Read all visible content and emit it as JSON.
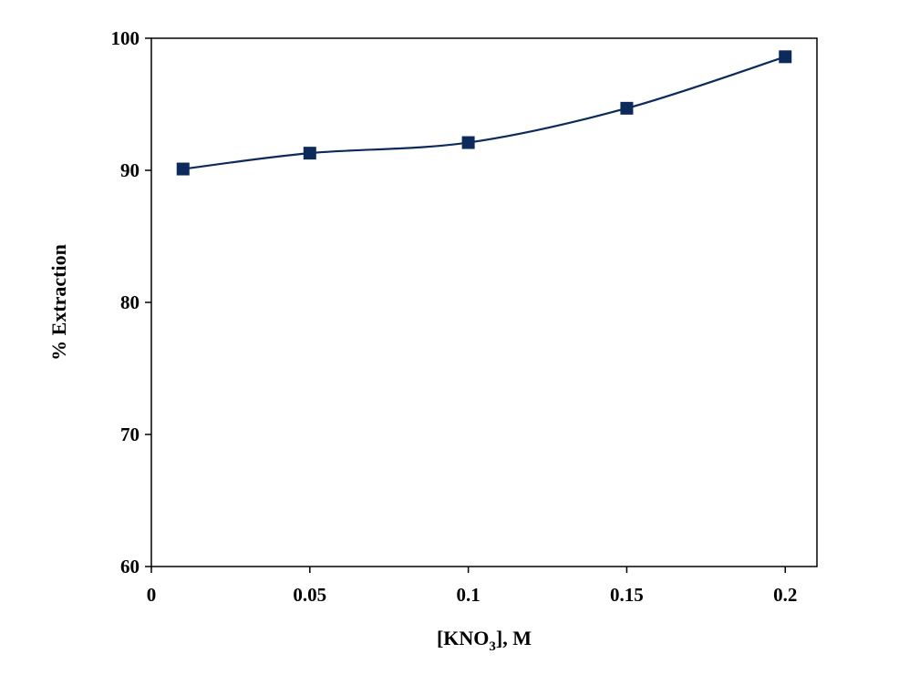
{
  "chart_data": {
    "type": "line",
    "title": "",
    "xlabel": {
      "pre": "[KNO",
      "sub": "3",
      "post": "], M"
    },
    "ylabel": "% Extraction",
    "xlim": [
      0,
      0.21
    ],
    "ylim": [
      60,
      100
    ],
    "xticks": [
      0,
      0.05,
      0.1,
      0.15,
      0.2
    ],
    "xtick_labels": [
      "0",
      "0.05",
      "0.1",
      "0.15",
      "0.2"
    ],
    "yticks": [
      60,
      70,
      80,
      90,
      100
    ],
    "ytick_labels": [
      "60",
      "70",
      "80",
      "90",
      "100"
    ],
    "grid": false,
    "series": [
      {
        "name": "% Extraction",
        "x": [
          0.01,
          0.05,
          0.1,
          0.15,
          0.2
        ],
        "y": [
          90.1,
          91.3,
          92.1,
          94.7,
          98.6
        ],
        "marker": "square",
        "smooth": true,
        "color": "#0d2a5c"
      }
    ]
  }
}
